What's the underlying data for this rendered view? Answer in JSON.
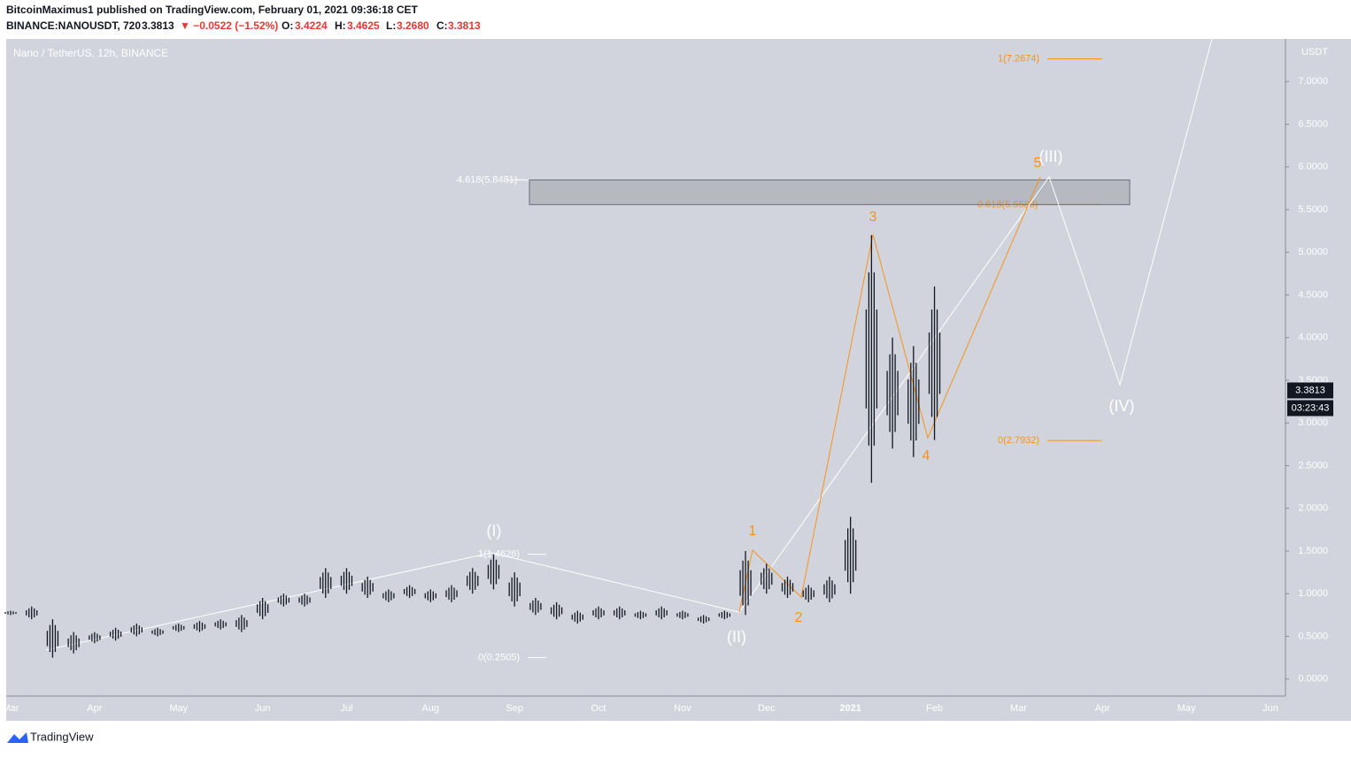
{
  "header": {
    "publisher": "BitcoinMaximus1 published on TradingView.com, February 01, 2021 09:36:18 CET",
    "symbol": "BINANCE:NANOUSDT, 720",
    "last": "3.3813",
    "change": "▼ −0.0522 (−1.52%)",
    "o_label": "O:",
    "open": "3.4224",
    "h_label": "H:",
    "high": "3.4625",
    "l_label": "L:",
    "low": "3.2680",
    "c_label": "C:",
    "close": "3.3813"
  },
  "footer": {
    "brand": "TradingView"
  },
  "chart_data": {
    "type": "candlestick",
    "title": "Nano / TetherUS, 12h, BINANCE",
    "y_unit": "USDT",
    "categories": [
      "Mar",
      null,
      null,
      null,
      "Apr",
      null,
      null,
      null,
      "May",
      null,
      null,
      null,
      "Jun",
      null,
      null,
      null,
      "Jul",
      null,
      null,
      null,
      "Aug",
      null,
      null,
      null,
      "Sep",
      null,
      null,
      null,
      "Oct",
      null,
      null,
      null,
      "Nov",
      null,
      null,
      null,
      "Dec",
      null,
      null,
      null,
      "2021",
      null,
      null,
      null,
      "Feb",
      null,
      null,
      null,
      "Mar",
      null,
      null,
      null,
      "Apr",
      null,
      null,
      null,
      "May",
      null,
      null,
      null,
      "Jun"
    ],
    "high": [
      0.8,
      0.85,
      0.7,
      0.55,
      0.55,
      0.6,
      0.65,
      0.6,
      0.65,
      0.68,
      0.7,
      0.75,
      0.95,
      1.0,
      1.0,
      1.3,
      1.3,
      1.2,
      1.05,
      1.1,
      1.05,
      1.1,
      1.3,
      1.46,
      1.25,
      0.95,
      0.9,
      0.8,
      0.85,
      0.85,
      0.8,
      0.85,
      0.8,
      0.75,
      0.8,
      1.5,
      1.35,
      1.2,
      1.1,
      1.2,
      1.9,
      5.2,
      4.0,
      3.9,
      4.6,
      null,
      null,
      null,
      null,
      null,
      null,
      null,
      null,
      null,
      null,
      null,
      null,
      null,
      null,
      null,
      null
    ],
    "low": [
      0.75,
      0.7,
      0.25,
      0.3,
      0.42,
      0.45,
      0.5,
      0.5,
      0.55,
      0.55,
      0.58,
      0.55,
      0.7,
      0.85,
      0.85,
      0.95,
      1.0,
      0.95,
      0.9,
      0.95,
      0.9,
      0.9,
      1.0,
      1.05,
      0.85,
      0.75,
      0.7,
      0.65,
      0.7,
      0.7,
      0.7,
      0.7,
      0.7,
      0.65,
      0.7,
      0.75,
      1.0,
      0.95,
      0.9,
      0.9,
      1.0,
      2.3,
      2.7,
      2.6,
      2.8,
      null,
      null,
      null,
      null,
      null,
      null,
      null,
      null,
      null,
      null,
      null,
      null,
      null,
      null,
      null,
      null
    ],
    "color": "#131722",
    "ylim": [
      -0.2,
      7.5
    ],
    "yticks": [
      {
        "value": 0,
        "label": "0.0000"
      },
      {
        "value": 0.5,
        "label": "0.5000"
      },
      {
        "value": 1,
        "label": "1.0000"
      },
      {
        "value": 1.5,
        "label": "1.5000"
      },
      {
        "value": 2,
        "label": "2.0000"
      },
      {
        "value": 2.5,
        "label": "2.5000"
      },
      {
        "value": 3,
        "label": "3.0000"
      },
      {
        "value": 3.5,
        "label": "3.5000"
      },
      {
        "value": 4,
        "label": "4.0000"
      },
      {
        "value": 4.5,
        "label": "4.5000"
      },
      {
        "value": 5,
        "label": "5.0000"
      },
      {
        "value": 5.5,
        "label": "5.5000"
      },
      {
        "value": 6,
        "label": "6.0000"
      },
      {
        "value": 6.5,
        "label": "6.5000"
      },
      {
        "value": 7,
        "label": "7.0000"
      }
    ],
    "price_tag": {
      "value": 3.3813,
      "label": "3.3813",
      "countdown": "03:23:43"
    },
    "fib_levels": [
      {
        "value": 1.4626,
        "label": "1(1.4626)",
        "color": "#ffffff"
      },
      {
        "value": 0.2505,
        "label": "0(0.2505)",
        "color": "#ffffff"
      },
      {
        "value": 5.8481,
        "label": "4.618(5.8481)",
        "color": "#ffffff"
      },
      {
        "value": 5.5583,
        "label": "0.618(5.5583)",
        "color": "#f7931a"
      },
      {
        "value": 7.2674,
        "label": "1(7.2674)",
        "color": "#f7931a"
      },
      {
        "value": 2.7932,
        "label": "0(2.7932)",
        "color": "#f7931a"
      }
    ],
    "wave_labels": {
      "major": [
        "(I)",
        "(II)",
        "(III)",
        "(IV)"
      ],
      "minor": [
        "1",
        "2",
        "3",
        "4",
        "5"
      ]
    }
  }
}
